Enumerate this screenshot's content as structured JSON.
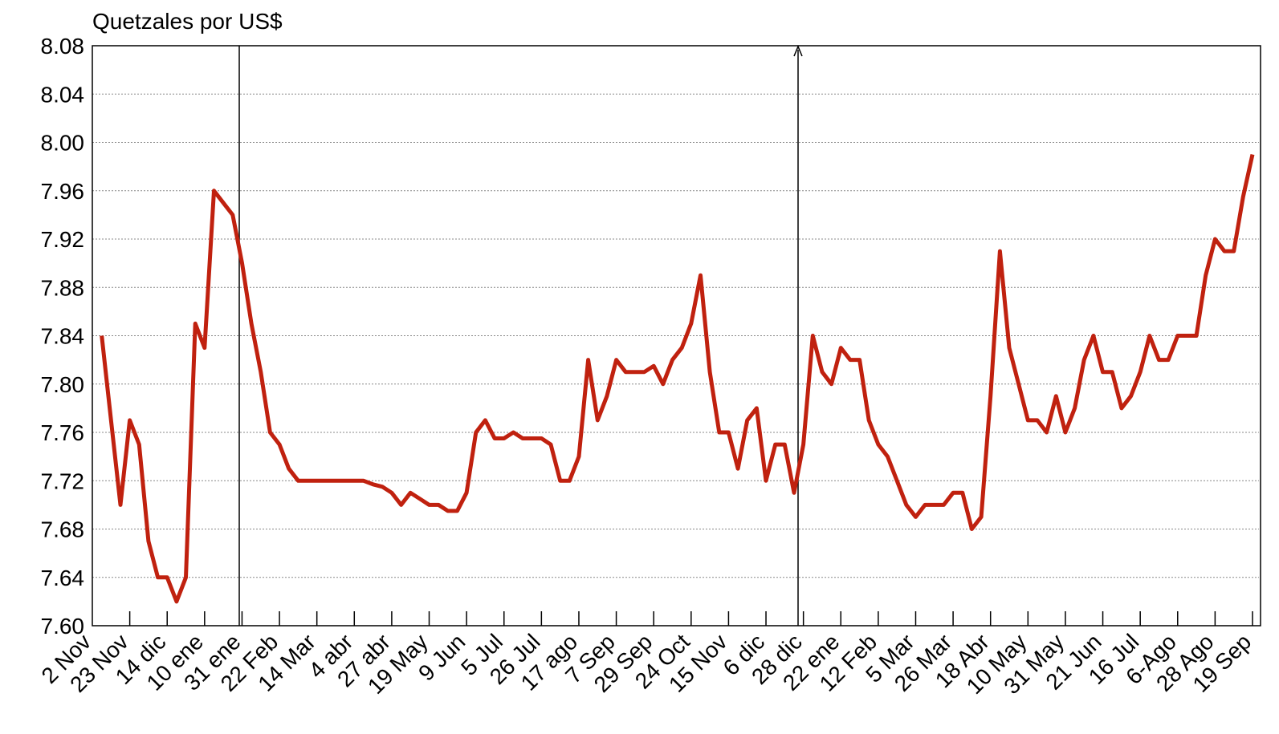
{
  "chart_data": {
    "type": "line",
    "y_label": "Quetzales por US$",
    "categories": [
      "2 Nov",
      null,
      null,
      null,
      "23 Nov",
      null,
      null,
      null,
      "14 dic",
      null,
      null,
      null,
      "10 ene",
      null,
      null,
      null,
      "31 ene",
      null,
      null,
      null,
      "22 Feb",
      null,
      null,
      null,
      "14 Mar",
      null,
      null,
      null,
      "4 abr",
      null,
      null,
      null,
      "27 abr",
      null,
      null,
      null,
      "19 May",
      null,
      null,
      null,
      "9 Jun",
      null,
      null,
      null,
      "5 Jul",
      null,
      null,
      null,
      "26 Jul",
      null,
      null,
      null,
      "17 ago",
      null,
      null,
      null,
      "7 Sep",
      null,
      null,
      null,
      "29 Sep",
      null,
      null,
      null,
      "24 Oct",
      null,
      null,
      null,
      "15 Nov",
      null,
      null,
      null,
      "6 dic",
      null,
      null,
      null,
      "28 dic",
      null,
      null,
      null,
      "22 ene",
      null,
      null,
      null,
      "12 Feb",
      null,
      null,
      null,
      "5 Mar",
      null,
      null,
      null,
      "26 Mar",
      null,
      null,
      null,
      "18 Abr",
      null,
      null,
      null,
      "10 May",
      null,
      null,
      null,
      "31 May",
      null,
      null,
      null,
      "21 Jun",
      null,
      null,
      null,
      "16 Jul",
      null,
      null,
      null,
      "6-Ago",
      null,
      null,
      null,
      "28 Ago",
      null,
      null,
      null,
      "19 Sep"
    ],
    "values": [
      null,
      7.84,
      7.77,
      7.7,
      7.77,
      7.75,
      7.67,
      7.64,
      7.64,
      7.62,
      7.64,
      7.85,
      7.83,
      7.96,
      7.95,
      7.94,
      7.9,
      7.85,
      7.81,
      7.76,
      7.75,
      7.73,
      7.72,
      7.72,
      7.72,
      7.72,
      7.72,
      7.72,
      7.72,
      7.72,
      7.717,
      7.715,
      7.71,
      7.7,
      7.71,
      7.705,
      7.7,
      7.7,
      7.695,
      7.695,
      7.71,
      7.76,
      7.77,
      7.755,
      7.755,
      7.76,
      7.755,
      7.755,
      7.755,
      7.75,
      7.72,
      7.72,
      7.74,
      7.82,
      7.77,
      7.79,
      7.82,
      7.81,
      7.81,
      7.81,
      7.815,
      7.8,
      7.82,
      7.83,
      7.85,
      7.89,
      7.81,
      7.76,
      7.76,
      7.73,
      7.77,
      7.78,
      7.72,
      7.75,
      7.75,
      7.71,
      7.75,
      7.84,
      7.81,
      7.8,
      7.83,
      7.82,
      7.82,
      7.77,
      7.75,
      7.74,
      7.72,
      7.7,
      7.69,
      7.7,
      7.7,
      7.7,
      7.71,
      7.71,
      7.68,
      7.69,
      7.79,
      7.91,
      7.83,
      7.8,
      7.77,
      7.77,
      7.76,
      7.79,
      7.76,
      7.78,
      7.82,
      7.84,
      7.81,
      7.81,
      7.78,
      7.79,
      7.81,
      7.84,
      7.82,
      7.82,
      7.84,
      7.84,
      7.84,
      7.89,
      7.92,
      7.91,
      7.91,
      7.955,
      7.99
    ],
    "color": "#c0210f",
    "ylim": [
      7.6,
      8.08
    ],
    "yticks": [
      {
        "value": 7.6,
        "label": "7.60"
      },
      7.64,
      7.68,
      7.72,
      7.76,
      {
        "value": 7.8,
        "label": "7.80"
      },
      7.84,
      7.88,
      7.92,
      7.96,
      {
        "value": 8.0,
        "label": "8.00"
      },
      8.04,
      8.08
    ],
    "grid": true
  }
}
